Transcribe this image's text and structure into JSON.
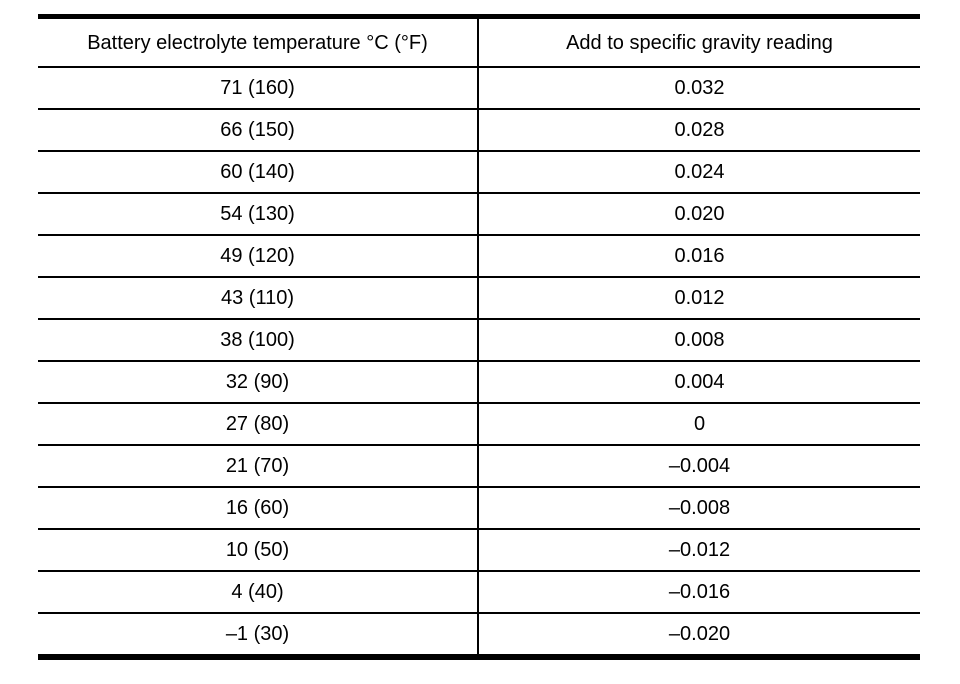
{
  "colors": {
    "background": "#ffffff",
    "text": "#000000",
    "border": "#000000"
  },
  "table": {
    "headers": [
      "Battery electrolyte temperature °C (°F)",
      "Add to specific gravity reading"
    ],
    "rows": [
      [
        "71 (160)",
        "0.032"
      ],
      [
        "66 (150)",
        "0.028"
      ],
      [
        "60 (140)",
        "0.024"
      ],
      [
        "54 (130)",
        "0.020"
      ],
      [
        "49 (120)",
        "0.016"
      ],
      [
        "43 (110)",
        "0.012"
      ],
      [
        "38 (100)",
        "0.008"
      ],
      [
        "32 (90)",
        "0.004"
      ],
      [
        "27 (80)",
        "0"
      ],
      [
        "21 (70)",
        "–0.004"
      ],
      [
        "16 (60)",
        "–0.008"
      ],
      [
        "10 (50)",
        "–0.012"
      ],
      [
        "4 (40)",
        "–0.016"
      ],
      [
        "–1 (30)",
        "–0.020"
      ]
    ]
  }
}
